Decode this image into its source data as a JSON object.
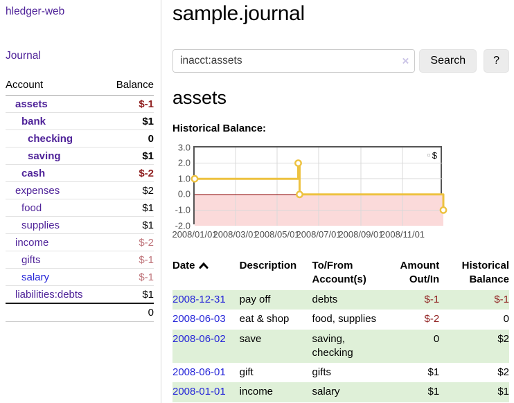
{
  "brand": "hledger-web",
  "nav": {
    "journal": "Journal"
  },
  "sidebar": {
    "header": {
      "account": "Account",
      "balance": "Balance"
    },
    "accounts": [
      {
        "name": "assets",
        "balance": "$-1",
        "depth": 1,
        "bold": true
      },
      {
        "name": "bank",
        "balance": "$1",
        "depth": 2,
        "bold": true
      },
      {
        "name": "checking",
        "balance": "0",
        "depth": 3,
        "bold": true
      },
      {
        "name": "saving",
        "balance": "$1",
        "depth": 3,
        "bold": true
      },
      {
        "name": "cash",
        "balance": "$-2",
        "depth": 2,
        "bold": true
      },
      {
        "name": "expenses",
        "balance": "$2",
        "depth": 1,
        "bold": false
      },
      {
        "name": "food",
        "balance": "$1",
        "depth": 2,
        "bold": false
      },
      {
        "name": "supplies",
        "balance": "$1",
        "depth": 2,
        "bold": false
      },
      {
        "name": "income",
        "balance": "$-2",
        "depth": 1,
        "bold": false
      },
      {
        "name": "gifts",
        "balance": "$-1",
        "depth": 2,
        "bold": false
      },
      {
        "name": "salary",
        "balance": "$-1",
        "depth": 2,
        "bold": false,
        "blue": true
      },
      {
        "name": "liabilities:debts",
        "balance": "$1",
        "depth": 1,
        "bold": false
      }
    ],
    "total": "0"
  },
  "header": {
    "title": "sample.journal"
  },
  "search": {
    "value": "inacct:assets",
    "clear_icon": "×",
    "search_label": "Search",
    "help_label": "?"
  },
  "account_page": {
    "title": "assets",
    "chart_heading": "Historical Balance:"
  },
  "chart_data": {
    "type": "line",
    "title": "Historical Balance:",
    "x_range": [
      "2008-01-01",
      "2008-12-31"
    ],
    "ylim": [
      -2,
      3
    ],
    "y_ticks": [
      "3.0",
      "2.0",
      "1.0",
      "0.0",
      "-1.0",
      "-2.0"
    ],
    "x_ticks": [
      "2008/01/01",
      "2008/03/01",
      "2008/05/01",
      "2008/07/01",
      "2008/09/01",
      "2008/11/01"
    ],
    "grid": true,
    "legend": {
      "label": "$",
      "position": "top-right"
    },
    "series": [
      {
        "name": "$",
        "step": true,
        "color": "#edc240",
        "points": [
          [
            "2008-01-01",
            1
          ],
          [
            "2008-06-01",
            2
          ],
          [
            "2008-06-03",
            0
          ],
          [
            "2008-12-31",
            -1
          ]
        ]
      }
    ],
    "negative_region_color": "#fbdada",
    "zero_line_color": "#8b0000"
  },
  "register": {
    "columns": [
      {
        "lines": [
          "Date"
        ],
        "sorted": "asc"
      },
      {
        "lines": [
          "Description"
        ]
      },
      {
        "lines": [
          "To/From",
          "Account(s)"
        ]
      },
      {
        "lines": [
          "Amount",
          "Out/In"
        ],
        "align": "right"
      },
      {
        "lines": [
          "Historical",
          "Balance"
        ],
        "align": "right"
      }
    ],
    "rows": [
      {
        "date": "2008-12-31",
        "description": "pay off",
        "accounts": "debts",
        "amount": "$-1",
        "balance": "$-1"
      },
      {
        "date": "2008-06-03",
        "description": "eat & shop",
        "accounts": "food, supplies",
        "amount": "$-2",
        "balance": "0"
      },
      {
        "date": "2008-06-02",
        "description": "save",
        "accounts": "saving, checking",
        "amount": "0",
        "balance": "$2"
      },
      {
        "date": "2008-06-01",
        "description": "gift",
        "accounts": "gifts",
        "amount": "$1",
        "balance": "$2"
      },
      {
        "date": "2008-01-01",
        "description": "income",
        "accounts": "salary",
        "amount": "$1",
        "balance": "$1"
      }
    ]
  },
  "colors": {
    "accent_gold": "#edc240",
    "negative": "#8f1e1e",
    "soft_negative": "#c0767c",
    "link_purple": "#4f2399",
    "link_blue": "#2626d8",
    "row_green": "#dff0d8"
  }
}
